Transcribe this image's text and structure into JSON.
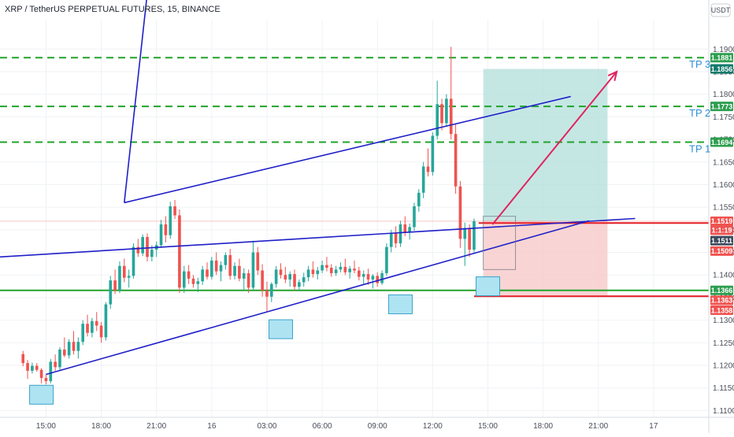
{
  "header": {
    "title": "XRP / TetherUS PERPETUAL FUTURES, 15, BINANCE"
  },
  "currency_button": {
    "label": "USDT"
  },
  "tp_labels": [
    {
      "label": "TP 3",
      "price": 1.1881
    },
    {
      "label": "TP 2",
      "price": 1.1773
    },
    {
      "label": "TP 1",
      "price": 1.1694
    }
  ],
  "price_badges": [
    {
      "text": "1.1881",
      "price": 1.1881,
      "color": "#2e9e4f"
    },
    {
      "text": "1.1856",
      "price": 1.1856,
      "color": "#127a6c"
    },
    {
      "text": "1.1773",
      "price": 1.1773,
      "color": "#2e9e4f"
    },
    {
      "text": "1.1694",
      "price": 1.1694,
      "color": "#2e9e4f"
    },
    {
      "text": "1.1519",
      "price": 1.1519,
      "color": "#ef5350"
    },
    {
      "text": "1:1:19",
      "price": 1.1499,
      "color": "#ef5350"
    },
    {
      "text": "1.1511",
      "price": 1.1476,
      "color": "#3d4a5c"
    },
    {
      "text": "1.1509",
      "price": 1.1453,
      "color": "#ef5350"
    },
    {
      "text": "1.1366",
      "price": 1.1366,
      "color": "#2e9e4f"
    },
    {
      "text": "1.1363",
      "price": 1.1344,
      "color": "#ef5350"
    },
    {
      "text": "1.1358",
      "price": 1.1322,
      "color": "#ef5350"
    }
  ],
  "colors": {
    "up": "#26a69a",
    "down": "#ef5350",
    "channel": "#1f1fc8",
    "tp_line": "#22a32a",
    "support": "#22a32a",
    "stop": "#e31b23",
    "arrow": "#e0245e",
    "profit_zone": "#b2dfdb",
    "loss_zone": "#f8c9c9",
    "marker_box": "#aee3f2"
  },
  "chart_data": {
    "type": "candlestick",
    "symbol": "XRP / TetherUS PERPETUAL FUTURES",
    "interval": "15",
    "exchange": "BINANCE",
    "x_tick_labels": [
      "15:00",
      "18:00",
      "21:00",
      "16",
      "03:00",
      "06:00",
      "09:00",
      "12:00",
      "15:00",
      "18:00",
      "21:00",
      "17"
    ],
    "x_tick_positions": [
      5,
      17,
      29,
      41,
      53,
      65,
      77,
      89,
      101,
      113,
      125,
      137
    ],
    "y_tick_labels": [
      "1.1100",
      "1.1150",
      "1.1200",
      "1.1250",
      "1.1300",
      "1.1350",
      "1.1400",
      "1.1450",
      "1.1500",
      "1.1550",
      "1.1600",
      "1.1650",
      "1.1700",
      "1.1750",
      "1.1800",
      "1.1850",
      "1.1900"
    ],
    "ylim": [
      1.1085,
      1.1965
    ],
    "xlim": [
      -5,
      149
    ],
    "candles": [
      [
        1.1225,
        1.1232,
        1.1198,
        1.1205
      ],
      [
        1.1205,
        1.1212,
        1.117,
        1.1188
      ],
      [
        1.1188,
        1.1206,
        1.1182,
        1.1199
      ],
      [
        1.1199,
        1.1205,
        1.1186,
        1.119
      ],
      [
        1.119,
        1.1194,
        1.116,
        1.1172
      ],
      [
        1.1172,
        1.118,
        1.1158,
        1.1165
      ],
      [
        1.1165,
        1.1214,
        1.116,
        1.1208
      ],
      [
        1.1208,
        1.1224,
        1.1188,
        1.1196
      ],
      [
        1.1196,
        1.124,
        1.119,
        1.1235
      ],
      [
        1.1235,
        1.1262,
        1.1218,
        1.1222
      ],
      [
        1.1222,
        1.1258,
        1.1215,
        1.1252
      ],
      [
        1.1252,
        1.1276,
        1.1224,
        1.1232
      ],
      [
        1.1232,
        1.1262,
        1.1215,
        1.1252
      ],
      [
        1.1252,
        1.13,
        1.1245,
        1.1292
      ],
      [
        1.1292,
        1.1312,
        1.1264,
        1.1272
      ],
      [
        1.1272,
        1.1305,
        1.1262,
        1.1298
      ],
      [
        1.1298,
        1.1318,
        1.1276,
        1.1288
      ],
      [
        1.1288,
        1.1296,
        1.125,
        1.1262
      ],
      [
        1.1262,
        1.134,
        1.1255,
        1.1335
      ],
      [
        1.1335,
        1.1398,
        1.1325,
        1.1388
      ],
      [
        1.1388,
        1.1412,
        1.1358,
        1.1366
      ],
      [
        1.1366,
        1.143,
        1.136,
        1.142
      ],
      [
        1.142,
        1.1436,
        1.1384,
        1.1394
      ],
      [
        1.1394,
        1.1412,
        1.1372,
        1.1398
      ],
      [
        1.1398,
        1.147,
        1.1392,
        1.1462
      ],
      [
        1.1462,
        1.148,
        1.144,
        1.1448
      ],
      [
        1.1448,
        1.149,
        1.1442,
        1.1484
      ],
      [
        1.1484,
        1.1492,
        1.143,
        1.144
      ],
      [
        1.144,
        1.1466,
        1.143,
        1.1456
      ],
      [
        1.1456,
        1.1474,
        1.144,
        1.1466
      ],
      [
        1.1466,
        1.1522,
        1.146,
        1.1512
      ],
      [
        1.1512,
        1.153,
        1.1472,
        1.1488
      ],
      [
        1.1488,
        1.1562,
        1.148,
        1.1552
      ],
      [
        1.1552,
        1.1566,
        1.1524,
        1.1532
      ],
      [
        1.1532,
        1.1545,
        1.136,
        1.1372
      ],
      [
        1.1372,
        1.142,
        1.136,
        1.1408
      ],
      [
        1.1408,
        1.1422,
        1.138,
        1.1392
      ],
      [
        1.1392,
        1.14,
        1.1372,
        1.138
      ],
      [
        1.138,
        1.1394,
        1.1362,
        1.1386
      ],
      [
        1.1386,
        1.142,
        1.1378,
        1.1412
      ],
      [
        1.1412,
        1.1428,
        1.139,
        1.1396
      ],
      [
        1.1396,
        1.144,
        1.139,
        1.1432
      ],
      [
        1.1432,
        1.145,
        1.14,
        1.1408
      ],
      [
        1.1408,
        1.143,
        1.1386,
        1.1422
      ],
      [
        1.1422,
        1.145,
        1.1412,
        1.1444
      ],
      [
        1.1444,
        1.1458,
        1.139,
        1.1398
      ],
      [
        1.1398,
        1.1428,
        1.139,
        1.142
      ],
      [
        1.142,
        1.1436,
        1.1386,
        1.1392
      ],
      [
        1.1392,
        1.1415,
        1.1366,
        1.1404
      ],
      [
        1.1404,
        1.1412,
        1.136,
        1.1372
      ],
      [
        1.1372,
        1.1476,
        1.1366,
        1.145
      ],
      [
        1.145,
        1.1462,
        1.14,
        1.141
      ],
      [
        1.141,
        1.1424,
        1.1352,
        1.1366
      ],
      [
        1.1366,
        1.1385,
        1.1318,
        1.1352
      ],
      [
        1.1352,
        1.1384,
        1.134,
        1.138
      ],
      [
        1.138,
        1.142,
        1.1372,
        1.1412
      ],
      [
        1.1412,
        1.1426,
        1.1392,
        1.14
      ],
      [
        1.14,
        1.1418,
        1.1382,
        1.139
      ],
      [
        1.139,
        1.1408,
        1.1374,
        1.1402
      ],
      [
        1.1402,
        1.1412,
        1.1366,
        1.1374
      ],
      [
        1.1374,
        1.139,
        1.1364,
        1.1384
      ],
      [
        1.1384,
        1.1405,
        1.1374,
        1.1395
      ],
      [
        1.1395,
        1.142,
        1.1386,
        1.1412
      ],
      [
        1.1412,
        1.143,
        1.1394,
        1.1402
      ],
      [
        1.1402,
        1.1418,
        1.139,
        1.141
      ],
      [
        1.141,
        1.1432,
        1.1404,
        1.1422
      ],
      [
        1.1422,
        1.144,
        1.1408,
        1.1416
      ],
      [
        1.1416,
        1.1424,
        1.1396,
        1.1404
      ],
      [
        1.1404,
        1.142,
        1.1398,
        1.1412
      ],
      [
        1.1412,
        1.1428,
        1.1406,
        1.1418
      ],
      [
        1.1418,
        1.1436,
        1.14,
        1.1406
      ],
      [
        1.1406,
        1.142,
        1.1392,
        1.1414
      ],
      [
        1.1414,
        1.1432,
        1.1404,
        1.141
      ],
      [
        1.141,
        1.1418,
        1.1388,
        1.1396
      ],
      [
        1.1396,
        1.141,
        1.138,
        1.1402
      ],
      [
        1.1402,
        1.1414,
        1.1378,
        1.139
      ],
      [
        1.139,
        1.1402,
        1.137,
        1.1398
      ],
      [
        1.1398,
        1.1406,
        1.1374,
        1.1382
      ],
      [
        1.1382,
        1.141,
        1.1378,
        1.1404
      ],
      [
        1.1404,
        1.147,
        1.1398,
        1.1462
      ],
      [
        1.1462,
        1.15,
        1.145,
        1.1492
      ],
      [
        1.1492,
        1.1508,
        1.146,
        1.147
      ],
      [
        1.147,
        1.152,
        1.1462,
        1.1512
      ],
      [
        1.1512,
        1.153,
        1.1486,
        1.1494
      ],
      [
        1.1494,
        1.1514,
        1.1478,
        1.1506
      ],
      [
        1.1506,
        1.156,
        1.1498,
        1.1552
      ],
      [
        1.1552,
        1.159,
        1.154,
        1.1582
      ],
      [
        1.1582,
        1.165,
        1.157,
        1.164
      ],
      [
        1.164,
        1.168,
        1.1618,
        1.1628
      ],
      [
        1.1628,
        1.1716,
        1.162,
        1.1708
      ],
      [
        1.1708,
        1.183,
        1.17,
        1.1778
      ],
      [
        1.1778,
        1.179,
        1.172,
        1.1736
      ],
      [
        1.1736,
        1.18,
        1.1728,
        1.179
      ],
      [
        1.179,
        1.1905,
        1.17,
        1.1712
      ],
      [
        1.1712,
        1.1735,
        1.158,
        1.1596
      ],
      [
        1.1596,
        1.1608,
        1.146,
        1.148
      ],
      [
        1.148,
        1.1516,
        1.142,
        1.1504
      ],
      [
        1.1504,
        1.1512,
        1.144,
        1.1456
      ],
      [
        1.1456,
        1.1525,
        1.145,
        1.1519
      ]
    ],
    "horizontal_levels": [
      {
        "price": 1.1881,
        "style": "dashed",
        "label": "TP 3"
      },
      {
        "price": 1.1773,
        "style": "dashed",
        "label": "TP 2"
      },
      {
        "price": 1.1694,
        "style": "dashed",
        "label": "TP 1"
      },
      {
        "price": 1.1366,
        "style": "solid"
      }
    ],
    "trend_lines": [
      {
        "from": [
          -5,
          1.144
        ],
        "to": [
          133,
          1.1525
        ]
      },
      {
        "from": [
          5,
          1.118
        ],
        "to": [
          123,
          1.152
        ]
      },
      {
        "from": [
          22,
          1.156
        ],
        "to": [
          119,
          1.1795
        ]
      },
      {
        "from": [
          22,
          1.156
        ],
        "to": [
          113,
          2.0
        ]
      }
    ],
    "trade_setup": {
      "entry": 1.1519,
      "target": 1.1856,
      "stop": 1.1355,
      "x_start": 100,
      "x_end": 127
    }
  }
}
